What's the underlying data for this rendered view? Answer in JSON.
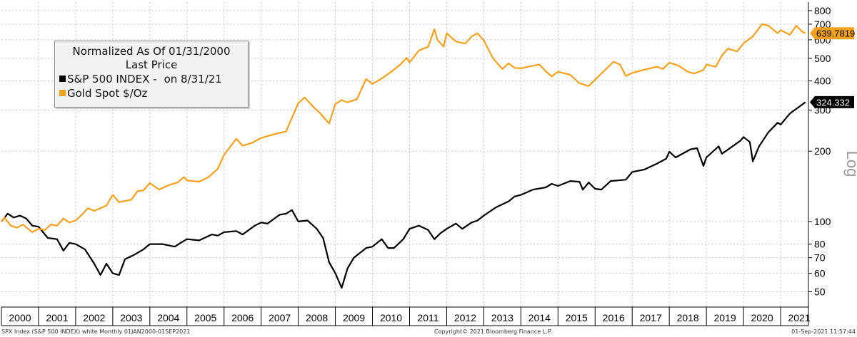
{
  "legend": {
    "title_line1": "Normalized As Of 01/31/2000",
    "title_line2": "Last Price",
    "sp_label": "S&P 500 INDEX -",
    "sp_note": "on 8/31/21",
    "gold_label": "Gold Spot   $/Oz"
  },
  "footer": {
    "left": "SPX Index (S&P 500 INDEX) white  Monthly 01JAN2000-01SEP2021",
    "center": "Copyright© 2021 Bloomberg Finance L.P.",
    "right": "01-Sep-2021 11:57:44"
  },
  "chart_data": {
    "type": "line",
    "x_unit": "year",
    "x_range": [
      2000.0,
      2021.75
    ],
    "x_tick_labels": [
      "2000",
      "2001",
      "2002",
      "2003",
      "2004",
      "2005",
      "2006",
      "2007",
      "2008",
      "2009",
      "2010",
      "2011",
      "2012",
      "2013",
      "2014",
      "2015",
      "2016",
      "2017",
      "2018",
      "2019",
      "2020",
      "2021"
    ],
    "y_scale": "log",
    "ylabel": "Log",
    "y_ticks": [
      50,
      60,
      70,
      80,
      100,
      200,
      300,
      400,
      500,
      600,
      700,
      800
    ],
    "y_range": [
      43,
      870
    ],
    "grid": true,
    "series": [
      {
        "name": "S&P 500 INDEX -",
        "color": "#000000",
        "last_value": "324.332",
        "points": [
          [
            2000.0,
            100
          ],
          [
            2000.17,
            108
          ],
          [
            2000.33,
            104
          ],
          [
            2000.5,
            106
          ],
          [
            2000.67,
            103
          ],
          [
            2000.83,
            96
          ],
          [
            2001.0,
            95
          ],
          [
            2001.25,
            85
          ],
          [
            2001.5,
            84
          ],
          [
            2001.67,
            75
          ],
          [
            2001.83,
            81
          ],
          [
            2002.0,
            80
          ],
          [
            2002.25,
            76
          ],
          [
            2002.5,
            66
          ],
          [
            2002.67,
            59
          ],
          [
            2002.83,
            66
          ],
          [
            2003.0,
            60
          ],
          [
            2003.17,
            59
          ],
          [
            2003.33,
            69
          ],
          [
            2003.58,
            72
          ],
          [
            2003.83,
            76
          ],
          [
            2004.0,
            80
          ],
          [
            2004.33,
            80
          ],
          [
            2004.67,
            78
          ],
          [
            2004.83,
            81
          ],
          [
            2005.0,
            84
          ],
          [
            2005.33,
            83
          ],
          [
            2005.67,
            88
          ],
          [
            2005.83,
            87
          ],
          [
            2006.0,
            90
          ],
          [
            2006.33,
            91
          ],
          [
            2006.5,
            88
          ],
          [
            2006.83,
            96
          ],
          [
            2007.0,
            99
          ],
          [
            2007.17,
            98
          ],
          [
            2007.5,
            107
          ],
          [
            2007.67,
            108
          ],
          [
            2007.83,
            112
          ],
          [
            2008.0,
            100
          ],
          [
            2008.25,
            101
          ],
          [
            2008.5,
            93
          ],
          [
            2008.67,
            85
          ],
          [
            2008.83,
            67
          ],
          [
            2009.0,
            60
          ],
          [
            2009.17,
            52
          ],
          [
            2009.33,
            63
          ],
          [
            2009.5,
            70
          ],
          [
            2009.83,
            77
          ],
          [
            2010.0,
            78
          ],
          [
            2010.25,
            84
          ],
          [
            2010.42,
            77
          ],
          [
            2010.58,
            77
          ],
          [
            2010.83,
            84
          ],
          [
            2011.0,
            93
          ],
          [
            2011.25,
            96
          ],
          [
            2011.5,
            92
          ],
          [
            2011.67,
            84
          ],
          [
            2011.83,
            89
          ],
          [
            2012.0,
            93
          ],
          [
            2012.25,
            98
          ],
          [
            2012.42,
            93
          ],
          [
            2012.67,
            99
          ],
          [
            2012.83,
            101
          ],
          [
            2013.0,
            106
          ],
          [
            2013.33,
            115
          ],
          [
            2013.67,
            122
          ],
          [
            2013.83,
            128
          ],
          [
            2014.0,
            130
          ],
          [
            2014.33,
            137
          ],
          [
            2014.67,
            140
          ],
          [
            2014.83,
            145
          ],
          [
            2015.0,
            142
          ],
          [
            2015.33,
            149
          ],
          [
            2015.58,
            148
          ],
          [
            2015.67,
            137
          ],
          [
            2015.83,
            147
          ],
          [
            2016.0,
            138
          ],
          [
            2016.17,
            137
          ],
          [
            2016.42,
            149
          ],
          [
            2016.83,
            151
          ],
          [
            2017.0,
            163
          ],
          [
            2017.33,
            167
          ],
          [
            2017.67,
            177
          ],
          [
            2017.92,
            186
          ],
          [
            2018.0,
            199
          ],
          [
            2018.17,
            188
          ],
          [
            2018.58,
            204
          ],
          [
            2018.75,
            206
          ],
          [
            2018.92,
            173
          ],
          [
            2019.0,
            188
          ],
          [
            2019.33,
            210
          ],
          [
            2019.42,
            195
          ],
          [
            2019.67,
            208
          ],
          [
            2019.92,
            222
          ],
          [
            2020.0,
            230
          ],
          [
            2020.17,
            219
          ],
          [
            2020.25,
            181
          ],
          [
            2020.42,
            210
          ],
          [
            2020.67,
            241
          ],
          [
            2020.92,
            265
          ],
          [
            2021.0,
            260
          ],
          [
            2021.25,
            290
          ],
          [
            2021.5,
            310
          ],
          [
            2021.67,
            324.332
          ]
        ]
      },
      {
        "name": "Gold Spot   $/Oz",
        "color": "#f5a11c",
        "last_value": "639.7819",
        "points": [
          [
            2000.0,
            100
          ],
          [
            2000.08,
            104
          ],
          [
            2000.25,
            96
          ],
          [
            2000.42,
            94
          ],
          [
            2000.58,
            97
          ],
          [
            2000.83,
            90
          ],
          [
            2001.0,
            93
          ],
          [
            2001.17,
            92
          ],
          [
            2001.33,
            97
          ],
          [
            2001.5,
            96
          ],
          [
            2001.67,
            103
          ],
          [
            2001.83,
            99
          ],
          [
            2002.0,
            101
          ],
          [
            2002.17,
            107
          ],
          [
            2002.33,
            114
          ],
          [
            2002.5,
            111
          ],
          [
            2002.83,
            117
          ],
          [
            2003.0,
            130
          ],
          [
            2003.17,
            121
          ],
          [
            2003.5,
            124
          ],
          [
            2003.67,
            135
          ],
          [
            2003.83,
            136
          ],
          [
            2004.0,
            146
          ],
          [
            2004.25,
            137
          ],
          [
            2004.5,
            143
          ],
          [
            2004.75,
            147
          ],
          [
            2004.92,
            155
          ],
          [
            2005.0,
            150
          ],
          [
            2005.33,
            148
          ],
          [
            2005.58,
            155
          ],
          [
            2005.83,
            168
          ],
          [
            2006.0,
            193
          ],
          [
            2006.33,
            226
          ],
          [
            2006.5,
            211
          ],
          [
            2006.75,
            217
          ],
          [
            2007.0,
            228
          ],
          [
            2007.33,
            236
          ],
          [
            2007.67,
            243
          ],
          [
            2007.83,
            278
          ],
          [
            2008.0,
            321
          ],
          [
            2008.17,
            340
          ],
          [
            2008.42,
            308
          ],
          [
            2008.58,
            292
          ],
          [
            2008.83,
            263
          ],
          [
            2009.0,
            319
          ],
          [
            2009.17,
            331
          ],
          [
            2009.33,
            324
          ],
          [
            2009.58,
            334
          ],
          [
            2009.83,
            408
          ],
          [
            2010.0,
            388
          ],
          [
            2010.25,
            410
          ],
          [
            2010.5,
            437
          ],
          [
            2010.75,
            470
          ],
          [
            2010.92,
            503
          ],
          [
            2011.0,
            480
          ],
          [
            2011.25,
            540
          ],
          [
            2011.5,
            560
          ],
          [
            2011.67,
            666
          ],
          [
            2011.75,
            600
          ],
          [
            2011.92,
            560
          ],
          [
            2012.0,
            640
          ],
          [
            2012.25,
            590
          ],
          [
            2012.5,
            578
          ],
          [
            2012.67,
            620
          ],
          [
            2012.83,
            640
          ],
          [
            2013.0,
            596
          ],
          [
            2013.25,
            500
          ],
          [
            2013.5,
            450
          ],
          [
            2013.67,
            476
          ],
          [
            2013.83,
            455
          ],
          [
            2014.0,
            453
          ],
          [
            2014.25,
            462
          ],
          [
            2014.5,
            470
          ],
          [
            2014.67,
            440
          ],
          [
            2014.83,
            418
          ],
          [
            2015.0,
            438
          ],
          [
            2015.33,
            425
          ],
          [
            2015.58,
            391
          ],
          [
            2015.83,
            380
          ],
          [
            2016.0,
            405
          ],
          [
            2016.25,
            443
          ],
          [
            2016.5,
            484
          ],
          [
            2016.67,
            470
          ],
          [
            2016.83,
            420
          ],
          [
            2017.0,
            433
          ],
          [
            2017.33,
            447
          ],
          [
            2017.67,
            460
          ],
          [
            2017.83,
            450
          ],
          [
            2018.0,
            479
          ],
          [
            2018.25,
            465
          ],
          [
            2018.5,
            438
          ],
          [
            2018.67,
            430
          ],
          [
            2018.92,
            446
          ],
          [
            2019.0,
            470
          ],
          [
            2019.25,
            460
          ],
          [
            2019.42,
            514
          ],
          [
            2019.58,
            550
          ],
          [
            2019.83,
            535
          ],
          [
            2020.0,
            580
          ],
          [
            2020.25,
            620
          ],
          [
            2020.5,
            700
          ],
          [
            2020.67,
            690
          ],
          [
            2020.92,
            640
          ],
          [
            2021.0,
            660
          ],
          [
            2021.25,
            630
          ],
          [
            2021.42,
            690
          ],
          [
            2021.58,
            650
          ],
          [
            2021.67,
            639.7819
          ]
        ]
      }
    ]
  }
}
